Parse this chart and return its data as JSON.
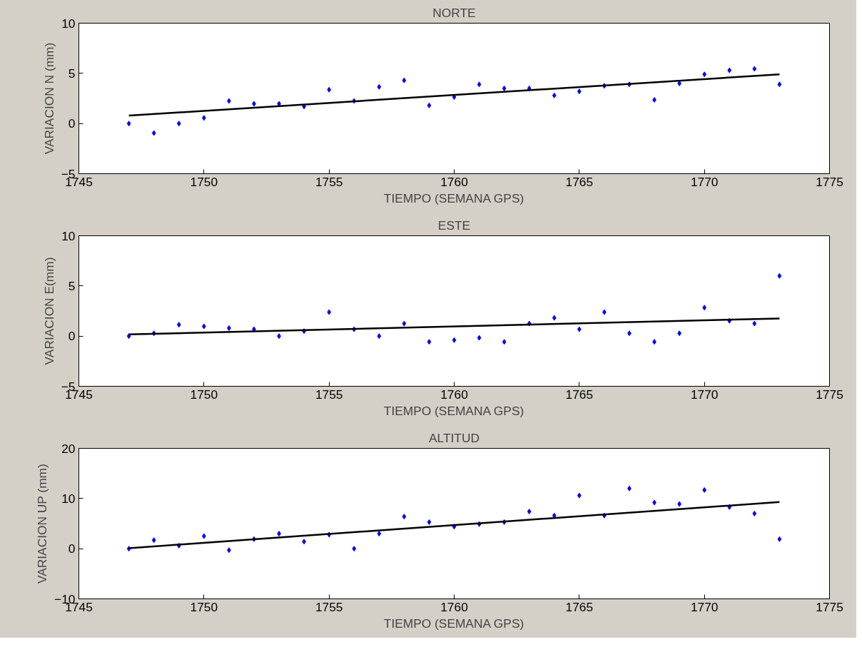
{
  "chart_data": [
    {
      "type": "scatter",
      "title": "NORTE",
      "xlabel": "TIEMPO (SEMANA GPS)",
      "ylabel": "VARIACION N (mm)",
      "xlim": [
        1745,
        1775
      ],
      "xticks": [
        1745,
        1750,
        1755,
        1760,
        1765,
        1770,
        1775
      ],
      "ylim": [
        -5,
        10
      ],
      "yticks": [
        -5,
        0,
        5,
        10
      ],
      "grid": false,
      "series": [
        {
          "marker": "diamond",
          "color": "#0000ff",
          "x": [
            1747,
            1748,
            1749,
            1750,
            1751,
            1752,
            1753,
            1754,
            1755,
            1756,
            1757,
            1758,
            1759,
            1760,
            1761,
            1762,
            1763,
            1764,
            1765,
            1766,
            1767,
            1768,
            1769,
            1770,
            1771,
            1772,
            1773
          ],
          "values": [
            0,
            -0.95,
            0,
            0.56,
            2.25,
            1.97,
            1.97,
            1.7,
            3.37,
            2.25,
            3.65,
            4.3,
            1.8,
            2.64,
            3.9,
            3.5,
            3.5,
            2.8,
            3.2,
            3.76,
            3.9,
            2.36,
            4.0,
            4.9,
            5.3,
            5.45,
            3.9
          ]
        },
        {
          "type": "line",
          "color": "#000000",
          "x": [
            1747,
            1773
          ],
          "values": [
            0.79,
            4.9
          ]
        }
      ]
    },
    {
      "type": "scatter",
      "title": "ESTE",
      "xlabel": "TIEMPO (SEMANA GPS)",
      "ylabel": "VARIACION E(mm)",
      "xlim": [
        1745,
        1775
      ],
      "xticks": [
        1745,
        1750,
        1755,
        1760,
        1765,
        1770,
        1775
      ],
      "ylim": [
        -5,
        10
      ],
      "yticks": [
        -5,
        0,
        5,
        10
      ],
      "grid": false,
      "series": [
        {
          "marker": "diamond",
          "color": "#0000ff",
          "x": [
            1747,
            1748,
            1749,
            1750,
            1751,
            1752,
            1753,
            1754,
            1755,
            1756,
            1757,
            1758,
            1759,
            1760,
            1761,
            1762,
            1763,
            1764,
            1765,
            1766,
            1767,
            1768,
            1769,
            1770,
            1771,
            1772,
            1773
          ],
          "values": [
            0,
            0.28,
            1.14,
            0.97,
            0.8,
            0.68,
            0,
            0.5,
            2.39,
            0.68,
            0,
            1.25,
            -0.57,
            -0.4,
            -0.17,
            -0.57,
            1.25,
            1.82,
            0.68,
            2.39,
            0.28,
            -0.57,
            0.28,
            2.84,
            1.53,
            1.25,
            6.0
          ]
        },
        {
          "type": "line",
          "color": "#000000",
          "x": [
            1747,
            1773
          ],
          "values": [
            0.17,
            1.76
          ]
        }
      ]
    },
    {
      "type": "scatter",
      "title": "ALTITUD",
      "xlabel": "TIEMPO (SEMANA GPS)",
      "ylabel": "VARIACION UP (mm)",
      "xlim": [
        1745,
        1775
      ],
      "xticks": [
        1745,
        1750,
        1755,
        1760,
        1765,
        1770,
        1775
      ],
      "ylim": [
        -10,
        20
      ],
      "yticks": [
        -10,
        0,
        10,
        20
      ],
      "grid": false,
      "series": [
        {
          "marker": "diamond",
          "color": "#0000ff",
          "x": [
            1747,
            1748,
            1749,
            1750,
            1751,
            1752,
            1753,
            1754,
            1755,
            1756,
            1757,
            1758,
            1759,
            1760,
            1761,
            1762,
            1763,
            1764,
            1765,
            1766,
            1767,
            1768,
            1769,
            1770,
            1771,
            1772,
            1773
          ],
          "values": [
            0,
            1.7,
            0.6,
            2.5,
            -0.3,
            1.9,
            3.0,
            1.4,
            2.8,
            0,
            3.0,
            6.4,
            5.3,
            4.4,
            4.9,
            5.3,
            7.4,
            6.6,
            10.6,
            6.6,
            12.0,
            9.2,
            8.9,
            11.7,
            8.3,
            7.0,
            1.9
          ]
        },
        {
          "type": "line",
          "color": "#000000",
          "x": [
            1747,
            1773
          ],
          "values": [
            0.1,
            9.3
          ]
        }
      ]
    }
  ]
}
